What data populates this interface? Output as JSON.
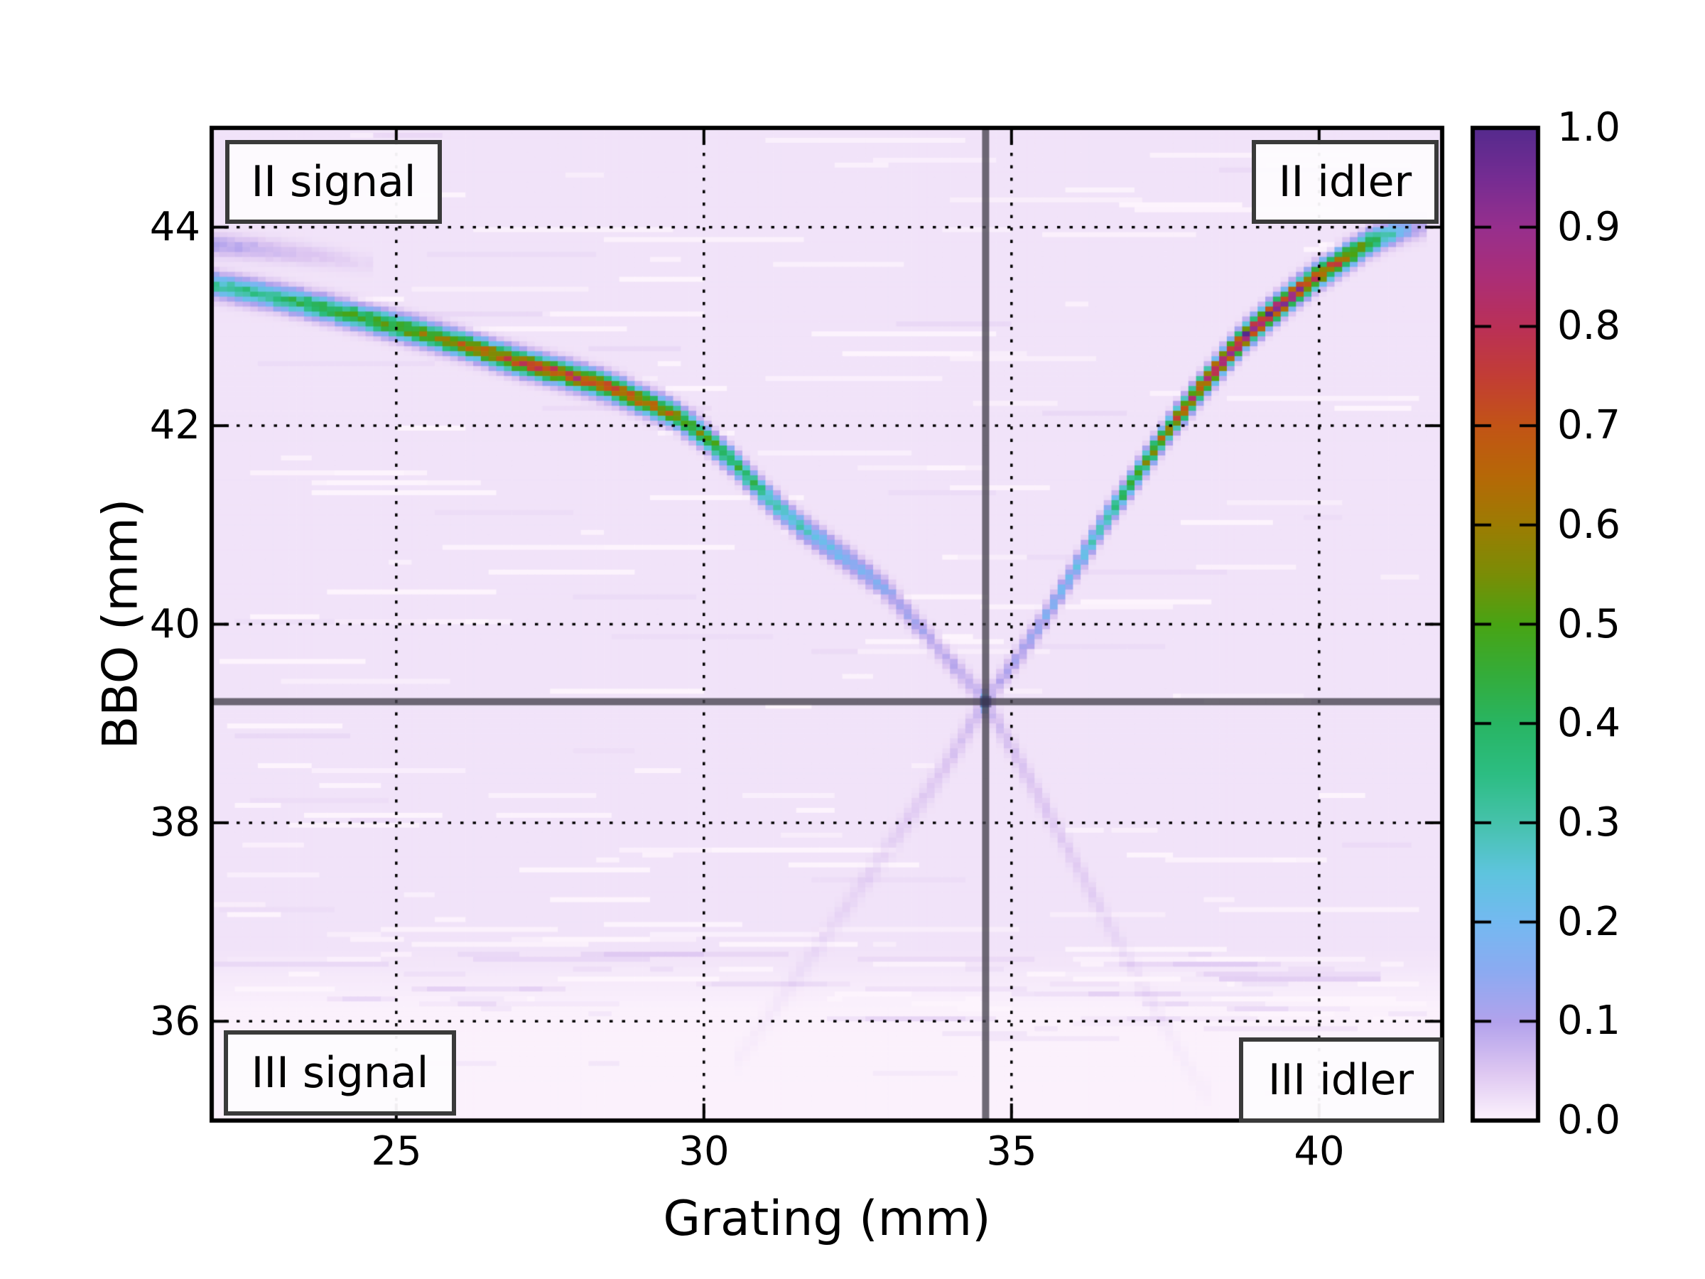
{
  "axes": {
    "xlabel": "Grating (mm)",
    "ylabel": "BBO (mm)",
    "x_ticks": [
      "25",
      "30",
      "35",
      "40"
    ],
    "y_ticks": [
      "44",
      "42",
      "40",
      "38",
      "36"
    ],
    "xlim": [
      22,
      42
    ],
    "ylim": [
      35,
      45
    ]
  },
  "region_labels": {
    "top_left": "II signal",
    "top_right": "II idler",
    "bottom_left": "III signal",
    "bottom_right": "III idler"
  },
  "colorbar": {
    "tick_labels": [
      "1.0",
      "0.9",
      "0.8",
      "0.7",
      "0.6",
      "0.5",
      "0.4",
      "0.3",
      "0.2",
      "0.1",
      "0.0"
    ],
    "vmin": 0.0,
    "vmax": 1.0
  },
  "crosshair": {
    "grating_mm": 34.58,
    "bbo_mm": 39.22,
    "color": "rgba(70,66,78,0.78)"
  },
  "chart_data": {
    "type": "heatmap",
    "title": "",
    "xlabel": "Grating (mm)",
    "ylabel": "BBO (mm)",
    "xlim": [
      22,
      42
    ],
    "ylim": [
      35,
      45
    ],
    "grid": true,
    "x_gridlines": [
      25,
      30,
      35,
      40
    ],
    "y_gridlines": [
      36,
      38,
      40,
      42,
      44
    ],
    "grid_style": "dotted-black",
    "legend": "colorbar 0.0-1.0 at right",
    "background_value": 0.018,
    "noise": "light horizontal streaks, data fades to ~0 below BBO 36.3",
    "colormap_stops": [
      [
        0.0,
        [
          253,
          244,
          253
        ]
      ],
      [
        0.05,
        [
          221,
          198,
          241
        ]
      ],
      [
        0.1,
        [
          178,
          162,
          236
        ]
      ],
      [
        0.15,
        [
          140,
          170,
          241
        ]
      ],
      [
        0.2,
        [
          116,
          185,
          241
        ]
      ],
      [
        0.25,
        [
          94,
          196,
          222
        ]
      ],
      [
        0.3,
        [
          70,
          194,
          172
        ]
      ],
      [
        0.35,
        [
          44,
          189,
          130
        ]
      ],
      [
        0.4,
        [
          40,
          181,
          99
        ]
      ],
      [
        0.45,
        [
          52,
          172,
          58
        ]
      ],
      [
        0.5,
        [
          72,
          164,
          20
        ]
      ],
      [
        0.55,
        [
          122,
          141,
          6
        ]
      ],
      [
        0.6,
        [
          156,
          124,
          3
        ]
      ],
      [
        0.65,
        [
          182,
          104,
          7
        ]
      ],
      [
        0.7,
        [
          194,
          84,
          22
        ]
      ],
      [
        0.75,
        [
          194,
          61,
          53
        ]
      ],
      [
        0.8,
        [
          186,
          48,
          87
        ]
      ],
      [
        0.85,
        [
          171,
          46,
          119
        ]
      ],
      [
        0.9,
        [
          151,
          47,
          141
        ]
      ],
      [
        0.95,
        [
          117,
          44,
          146
        ]
      ],
      [
        1.0,
        [
          85,
          42,
          141
        ]
      ]
    ],
    "branches": [
      {
        "name": "II-signal-ridge",
        "sigma_mm": 0.105,
        "points": [
          [
            22,
            43.42,
            0.3
          ],
          [
            23,
            43.3,
            0.36
          ],
          [
            24,
            43.16,
            0.43
          ],
          [
            25,
            43.0,
            0.5
          ],
          [
            26,
            42.83,
            0.59
          ],
          [
            27,
            42.64,
            0.68
          ],
          [
            27.8,
            42.51,
            0.72
          ],
          [
            28.5,
            42.38,
            0.69
          ],
          [
            29,
            42.25,
            0.63
          ],
          [
            29.5,
            42.12,
            0.56
          ],
          [
            30,
            41.9,
            0.48
          ],
          [
            30.5,
            41.62,
            0.4
          ],
          [
            31,
            41.3,
            0.33
          ],
          [
            31.5,
            41.02,
            0.26
          ],
          [
            32,
            40.8,
            0.21
          ],
          [
            32.5,
            40.58,
            0.16
          ],
          [
            33,
            40.33,
            0.12
          ],
          [
            33.5,
            39.98,
            0.09
          ],
          [
            34,
            39.63,
            0.072
          ],
          [
            34.58,
            39.22,
            0.058
          ]
        ]
      },
      {
        "name": "II-idler-ridge",
        "sigma_mm": 0.105,
        "points": [
          [
            34.58,
            39.22,
            0.058
          ],
          [
            35,
            39.58,
            0.085
          ],
          [
            35.5,
            40.02,
            0.13
          ],
          [
            36,
            40.52,
            0.2
          ],
          [
            36.5,
            41.02,
            0.29
          ],
          [
            37,
            41.47,
            0.42
          ],
          [
            37.5,
            41.92,
            0.57
          ],
          [
            38,
            42.32,
            0.74
          ],
          [
            38.4,
            42.62,
            0.85
          ],
          [
            38.8,
            42.9,
            0.92
          ],
          [
            39.2,
            43.12,
            0.9
          ],
          [
            39.6,
            43.33,
            0.82
          ],
          [
            40,
            43.52,
            0.74
          ],
          [
            40.4,
            43.68,
            0.64
          ],
          [
            40.8,
            43.84,
            0.47
          ],
          [
            41.1,
            43.92,
            0.31
          ],
          [
            41.35,
            43.97,
            0.18
          ],
          [
            41.62,
            44.0,
            0.07
          ]
        ]
      },
      {
        "name": "upper-left-ghost-wisp",
        "sigma_mm": 0.1,
        "points": [
          [
            22,
            43.82,
            0.085
          ],
          [
            22.6,
            43.79,
            0.065
          ],
          [
            23.2,
            43.75,
            0.045
          ],
          [
            23.8,
            43.7,
            0.028
          ],
          [
            24.5,
            43.63,
            0.012
          ]
        ]
      },
      {
        "name": "III-idler-ghost",
        "sigma_mm": 0.13,
        "points": [
          [
            34.58,
            39.22,
            0.05
          ],
          [
            35.1,
            38.65,
            0.038
          ],
          [
            35.7,
            37.98,
            0.03
          ],
          [
            36.3,
            37.3,
            0.022
          ],
          [
            36.9,
            36.62,
            0.015
          ],
          [
            37.5,
            35.95,
            0.009
          ],
          [
            38.1,
            35.3,
            0.005
          ]
        ]
      },
      {
        "name": "III-signal-ghost",
        "sigma_mm": 0.13,
        "points": [
          [
            30.6,
            35.65,
            0.006
          ],
          [
            31.4,
            36.35,
            0.011
          ],
          [
            32.2,
            37.05,
            0.016
          ],
          [
            33,
            37.75,
            0.022
          ],
          [
            33.8,
            38.45,
            0.03
          ],
          [
            34.58,
            39.22,
            0.05
          ]
        ]
      }
    ]
  }
}
